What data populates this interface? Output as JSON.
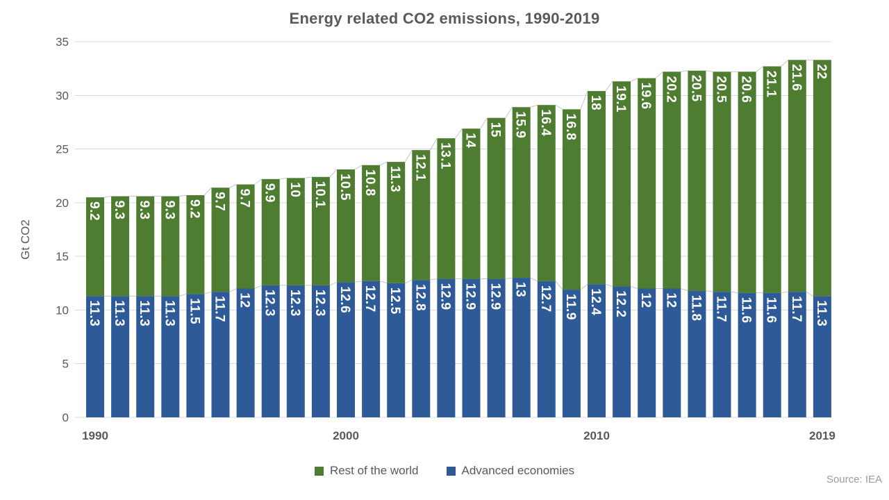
{
  "chart": {
    "title": "Energy related CO2 emissions, 1990-2019",
    "source": "Source: IEA"
  },
  "legend": {
    "items": [
      {
        "label": "Rest of the world",
        "color": "#4E7C31"
      },
      {
        "label": "Advanced economies",
        "color": "#2E5A97"
      }
    ]
  },
  "chart_data": {
    "type": "bar",
    "stacked": true,
    "title": "Energy related CO2 emissions, 1990-2019",
    "xlabel": "",
    "ylabel": "Gt CO2",
    "ylim": [
      0,
      35
    ],
    "ytick_interval": 5,
    "grid": true,
    "legend_position": "bottom",
    "categories": [
      1990,
      1991,
      1992,
      1993,
      1994,
      1995,
      1996,
      1997,
      1998,
      1999,
      2000,
      2001,
      2002,
      2003,
      2004,
      2005,
      2006,
      2007,
      2008,
      2009,
      2010,
      2011,
      2012,
      2013,
      2014,
      2015,
      2016,
      2017,
      2018,
      2019
    ],
    "xticks_shown": [
      1990,
      2000,
      2010,
      2019
    ],
    "series": [
      {
        "name": "Advanced economies",
        "color": "#2E5A97",
        "values": [
          11.3,
          11.3,
          11.3,
          11.3,
          11.5,
          11.7,
          12,
          12.3,
          12.3,
          12.3,
          12.6,
          12.7,
          12.5,
          12.8,
          12.9,
          12.9,
          12.9,
          13,
          12.7,
          11.9,
          12.4,
          12.2,
          12,
          12,
          11.8,
          11.7,
          11.6,
          11.6,
          11.7,
          11.3
        ]
      },
      {
        "name": "Rest of the world",
        "color": "#4E7C31",
        "values": [
          9.2,
          9.3,
          9.3,
          9.3,
          9.2,
          9.7,
          9.7,
          9.9,
          10,
          10.1,
          10.5,
          10.8,
          11.3,
          12.1,
          13.1,
          14,
          15,
          15.9,
          16.4,
          16.8,
          18,
          19.1,
          19.6,
          20.2,
          20.5,
          20.5,
          20.6,
          21.1,
          21.6,
          22
        ]
      }
    ],
    "bar_label_color": "#FFFFFF",
    "series_line_color": "#BFBFBF",
    "gridline_color": "#D9D9D9",
    "axis_text_color": "#595959"
  }
}
